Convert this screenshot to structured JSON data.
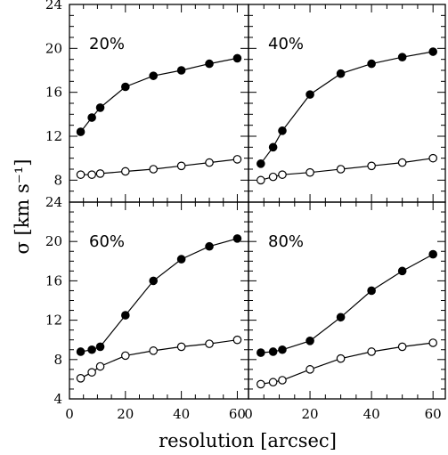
{
  "chart_data": {
    "type": "line",
    "layout": "2x2 grid of panels sharing axes",
    "xlabel": "resolution [arcsec]",
    "ylabel": "σ [km s⁻¹]",
    "grid": false,
    "legend": "none",
    "x_ticks": [
      0,
      20,
      40,
      60
    ],
    "xlim": [
      0,
      64
    ],
    "panels": [
      {
        "label": "20%",
        "ylim": [
          6,
          24
        ],
        "y_ticks": [
          8,
          12,
          16,
          20,
          24
        ],
        "x": [
          4,
          8,
          11,
          20,
          30,
          40,
          50,
          60
        ],
        "series": [
          {
            "marker": "filled",
            "values": [
              12.4,
              13.7,
              14.6,
              16.5,
              17.5,
              18.0,
              18.6,
              19.1
            ]
          },
          {
            "marker": "open",
            "values": [
              8.5,
              8.5,
              8.6,
              8.8,
              9.0,
              9.3,
              9.6,
              9.9
            ]
          }
        ]
      },
      {
        "label": "40%",
        "ylim": [
          6,
          24
        ],
        "y_ticks": [],
        "x": [
          4,
          8,
          11,
          20,
          30,
          40,
          50,
          60
        ],
        "series": [
          {
            "marker": "filled",
            "values": [
              9.5,
              11.0,
              12.5,
              15.8,
              17.7,
              18.6,
              19.2,
              19.7
            ]
          },
          {
            "marker": "open",
            "values": [
              8.0,
              8.3,
              8.5,
              8.7,
              9.0,
              9.3,
              9.6,
              10.0
            ]
          }
        ]
      },
      {
        "label": "60%",
        "ylim": [
          4,
          24
        ],
        "y_ticks": [
          4,
          8,
          12,
          16,
          20,
          24
        ],
        "x": [
          4,
          8,
          11,
          20,
          30,
          40,
          50,
          60
        ],
        "series": [
          {
            "marker": "filled",
            "values": [
              8.8,
              9.0,
              9.3,
              12.5,
              16.0,
              18.2,
              19.5,
              20.3
            ]
          },
          {
            "marker": "open",
            "values": [
              6.1,
              6.7,
              7.3,
              8.4,
              8.9,
              9.3,
              9.6,
              10.0
            ]
          }
        ]
      },
      {
        "label": "80%",
        "ylim": [
          4,
          24
        ],
        "y_ticks": [],
        "x": [
          4,
          8,
          11,
          20,
          30,
          40,
          50,
          60
        ],
        "series": [
          {
            "marker": "filled",
            "values": [
              8.7,
              8.8,
              9.0,
              9.9,
              12.3,
              15.0,
              17.0,
              18.7
            ]
          },
          {
            "marker": "open",
            "values": [
              5.5,
              5.7,
              5.9,
              7.0,
              8.1,
              8.8,
              9.3,
              9.7
            ]
          }
        ]
      }
    ]
  }
}
